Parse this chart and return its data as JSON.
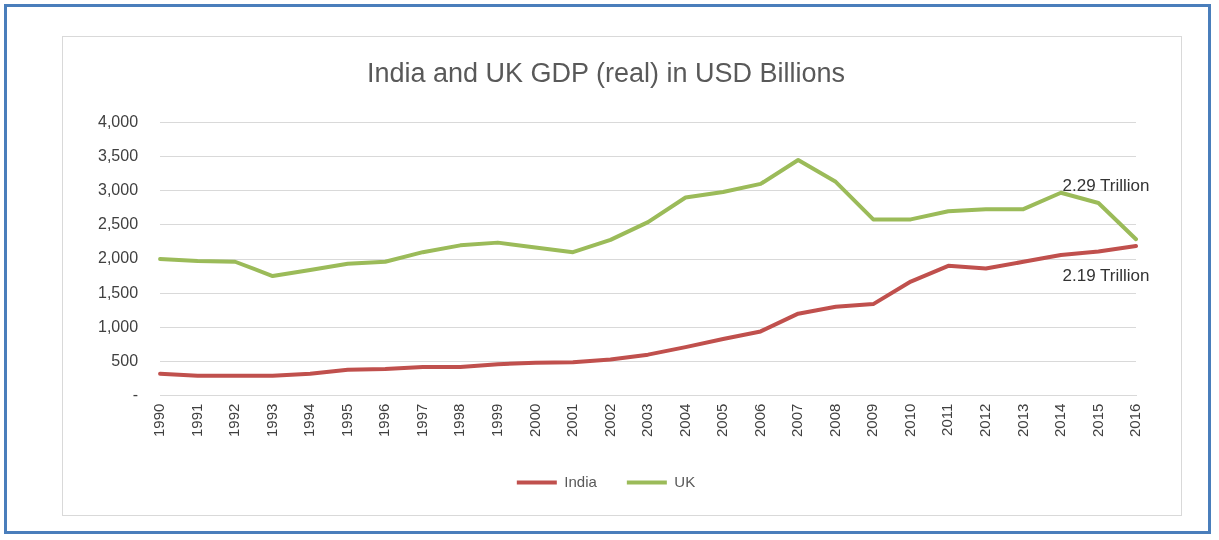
{
  "chart_data": {
    "type": "line",
    "title": "India and UK GDP (real) in USD Billions",
    "categories": [
      "1990",
      "1991",
      "1992",
      "1993",
      "1994",
      "1995",
      "1996",
      "1997",
      "1998",
      "1999",
      "2000",
      "2001",
      "2002",
      "2003",
      "2004",
      "2005",
      "2006",
      "2007",
      "2008",
      "2009",
      "2010",
      "2011",
      "2012",
      "2013",
      "2014",
      "2015",
      "2016"
    ],
    "series": [
      {
        "name": "India",
        "color": "#c0504d",
        "values": [
          320,
          290,
          290,
          290,
          320,
          380,
          390,
          420,
          420,
          460,
          480,
          490,
          530,
          600,
          710,
          830,
          940,
          1200,
          1300,
          1340,
          1670,
          1900,
          1860,
          1960,
          2060,
          2110,
          2190
        ]
      },
      {
        "name": "UK",
        "color": "#9bbb59",
        "values": [
          2000,
          1970,
          1960,
          1750,
          1840,
          1930,
          1960,
          2100,
          2200,
          2240,
          2170,
          2100,
          2280,
          2540,
          2900,
          2980,
          3100,
          3450,
          3130,
          2580,
          2580,
          2700,
          2730,
          2730,
          2970,
          2820,
          2290
        ]
      }
    ],
    "ylim": [
      0,
      4000
    ],
    "yticks": [
      {
        "value": 0,
        "label": "-"
      },
      {
        "value": 500,
        "label": "500"
      },
      {
        "value": 1000,
        "label": "1,000"
      },
      {
        "value": 1500,
        "label": "1,500"
      },
      {
        "value": 2000,
        "label": "2,000"
      },
      {
        "value": 2500,
        "label": "2,500"
      },
      {
        "value": 3000,
        "label": "3,000"
      },
      {
        "value": 3500,
        "label": "3,500"
      },
      {
        "value": 4000,
        "label": "4,000"
      }
    ],
    "annotations": [
      {
        "text": "2.29 Trillion",
        "x": "2016",
        "y": 2290
      },
      {
        "text": "2.19 Trillion",
        "x": "2016",
        "y": 2190
      }
    ],
    "grid": "y",
    "legend": "bottom",
    "marker": "none",
    "line_style": "solid"
  }
}
